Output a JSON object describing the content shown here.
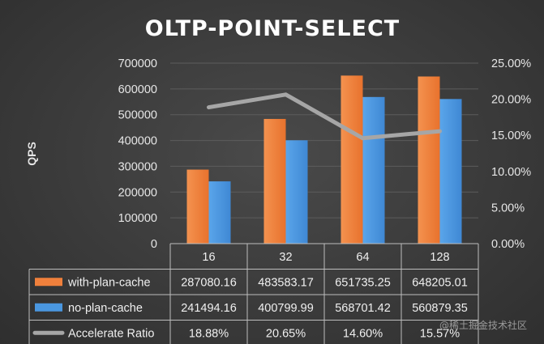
{
  "chart_data": {
    "type": "bar",
    "title": "OLTP-POINT-SELECT",
    "ylabel": "QPS",
    "categories": [
      "16",
      "32",
      "64",
      "128"
    ],
    "ylim": [
      0,
      700000
    ],
    "yticks": [
      "0",
      "100000",
      "200000",
      "300000",
      "400000",
      "500000",
      "600000",
      "700000"
    ],
    "y2lim": [
      0,
      25
    ],
    "y2ticks": [
      "0.00%",
      "5.00%",
      "10.00%",
      "15.00%",
      "20.00%",
      "25.00%"
    ],
    "series": [
      {
        "name": "with-plan-cache",
        "type": "bar",
        "color": "#f0803c",
        "values": [
          287080.16,
          483583.17,
          651735.25,
          648205.01
        ],
        "labels": [
          "287080.16",
          "483583.17",
          "651735.25",
          "648205.01"
        ]
      },
      {
        "name": "no-plan-cache",
        "type": "bar",
        "color": "#4a97e0",
        "values": [
          241494.16,
          400799.99,
          568701.42,
          560879.35
        ],
        "labels": [
          "241494.16",
          "400799.99",
          "568701.42",
          "560879.35"
        ]
      },
      {
        "name": "Accelerate Ratio",
        "type": "line",
        "axis": "secondary",
        "color": "#a6a6a6",
        "values": [
          18.88,
          20.65,
          14.6,
          15.57
        ],
        "labels": [
          "18.88%",
          "20.65%",
          "14.60%",
          "15.57%"
        ]
      }
    ],
    "legend": "data-table",
    "grid": true
  },
  "watermark": "@稀土掘金技术社区"
}
